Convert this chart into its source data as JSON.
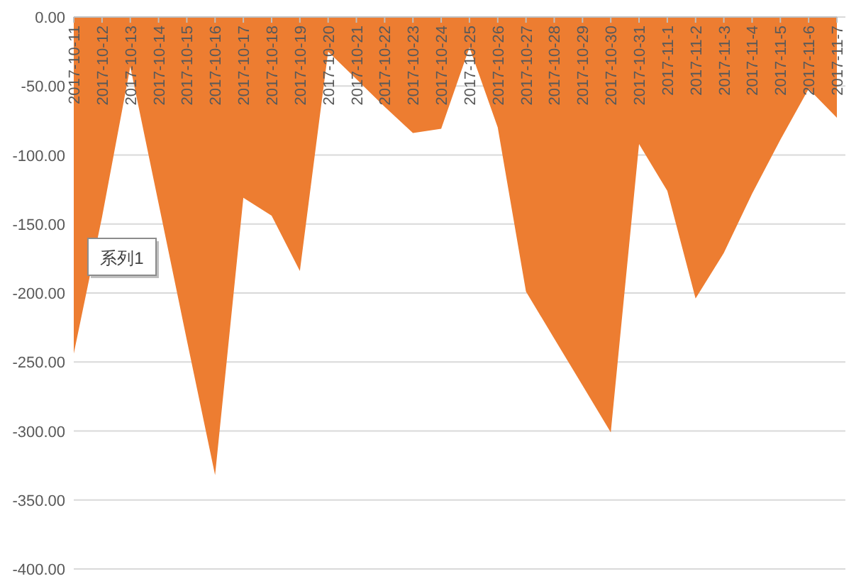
{
  "chart_data": {
    "type": "area",
    "categories": [
      "2017-10-11",
      "2017-10-12",
      "2017-10-13",
      "2017-10-14",
      "2017-10-15",
      "2017-10-16",
      "2017-10-17",
      "2017-10-18",
      "2017-10-19",
      "2017-10-20",
      "2017-10-21",
      "2017-10-22",
      "2017-10-23",
      "2017-10-24",
      "2017-10-25",
      "2017-10-26",
      "2017-10-27",
      "2017-10-28",
      "2017-10-29",
      "2017-10-30",
      "2017-10-31",
      "2017-11-1",
      "2017-11-2",
      "2017-11-3",
      "2017-11-4",
      "2017-11-5",
      "2017-11-6",
      "2017-11-7"
    ],
    "series": [
      {
        "name": "系列1",
        "color": "#ed7d31",
        "values": [
          -244,
          -145,
          -36,
          -135,
          -234,
          -332,
          -131,
          -144,
          -184,
          -25,
          -45,
          -65,
          -84,
          -81,
          -22,
          -80,
          -199,
          -233,
          -267,
          -301,
          -92,
          -126,
          -204,
          -171,
          -128,
          -89,
          -52,
          -73
        ]
      }
    ],
    "ylim": [
      -400,
      0
    ],
    "yticks": [
      {
        "value": -400,
        "label": "-400.00"
      },
      {
        "value": -350,
        "label": "-350.00"
      },
      {
        "value": -300,
        "label": "-300.00"
      },
      {
        "value": -250,
        "label": "-250.00"
      },
      {
        "value": -200,
        "label": "-200.00"
      },
      {
        "value": -150,
        "label": "-150.00"
      },
      {
        "value": -100,
        "label": "-100.00"
      },
      {
        "value": -50,
        "label": "-50.00"
      },
      {
        "value": 0,
        "label": "0.00"
      }
    ],
    "grid": "y",
    "legend": "left"
  }
}
